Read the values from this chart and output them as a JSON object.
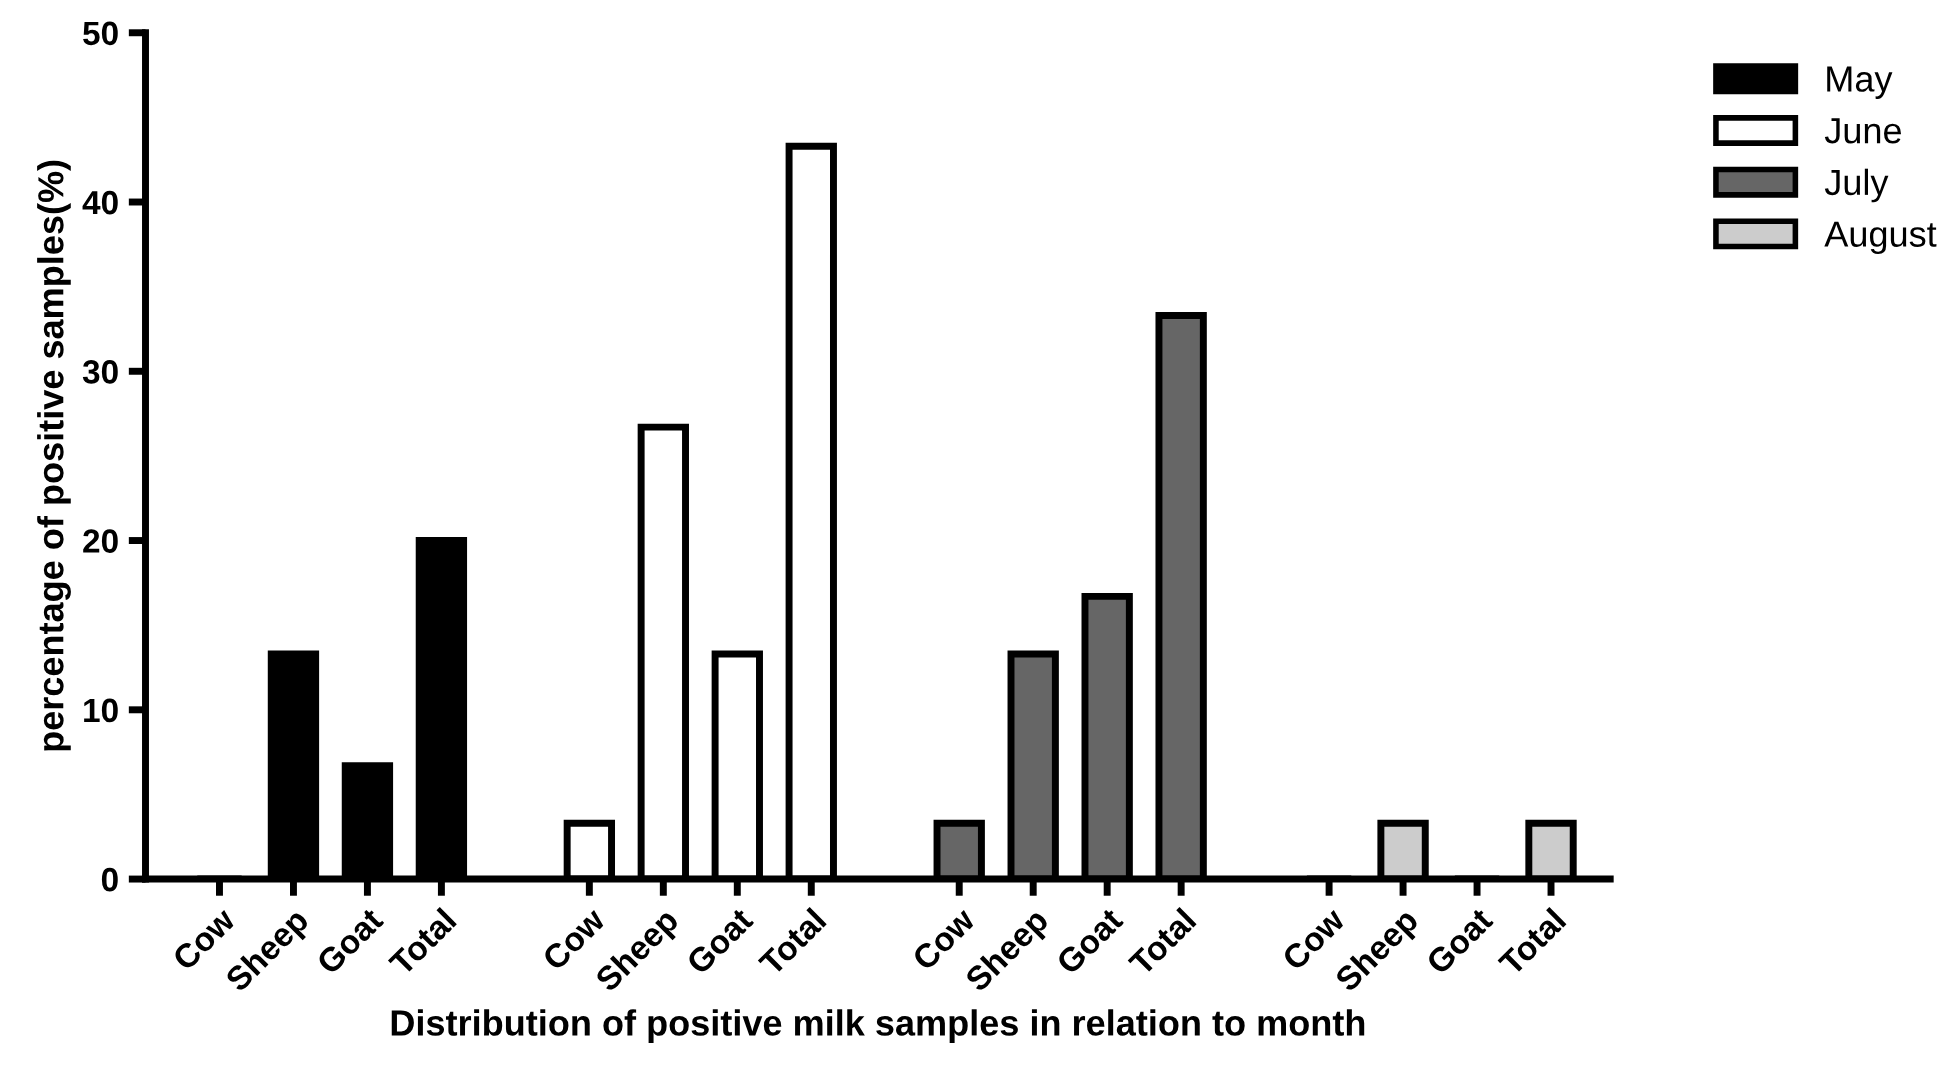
{
  "chart_data": {
    "type": "bar",
    "xlabel": "Distribution of positive milk samples in relation to month",
    "ylabel": "percentage of positive samples(%)",
    "categories": [
      "Cow",
      "Sheep",
      "Goat",
      "Total",
      null,
      "Cow",
      "Sheep",
      "Goat",
      "Total",
      null,
      "Cow",
      "Sheep",
      "Goat",
      "Total",
      null,
      "Cow",
      "Sheep",
      "Goat",
      "Total"
    ],
    "series": [
      {
        "name": "May",
        "color": "#000000",
        "values": [
          0,
          13.3,
          6.7,
          20,
          null,
          null,
          null,
          null,
          null,
          null,
          null,
          null,
          null,
          null,
          null,
          null,
          null,
          null,
          null
        ]
      },
      {
        "name": "June",
        "color": "#ffffff",
        "values": [
          null,
          null,
          null,
          null,
          null,
          3.3,
          26.7,
          13.3,
          43.3,
          null,
          null,
          null,
          null,
          null,
          null,
          null,
          null,
          null,
          null
        ]
      },
      {
        "name": "July",
        "color": "#666666",
        "values": [
          null,
          null,
          null,
          null,
          null,
          null,
          null,
          null,
          null,
          null,
          3.3,
          13.3,
          16.7,
          33.3,
          null,
          null,
          null,
          null,
          null
        ]
      },
      {
        "name": "August",
        "color": "#cccccc",
        "values": [
          null,
          null,
          null,
          null,
          null,
          null,
          null,
          null,
          null,
          null,
          null,
          null,
          null,
          null,
          null,
          0,
          3.3,
          0,
          3.3
        ]
      }
    ],
    "ylim": [
      0,
      50
    ],
    "yticks": [
      0,
      10,
      20,
      30,
      40,
      50
    ],
    "grid": false,
    "legend": "top right"
  }
}
